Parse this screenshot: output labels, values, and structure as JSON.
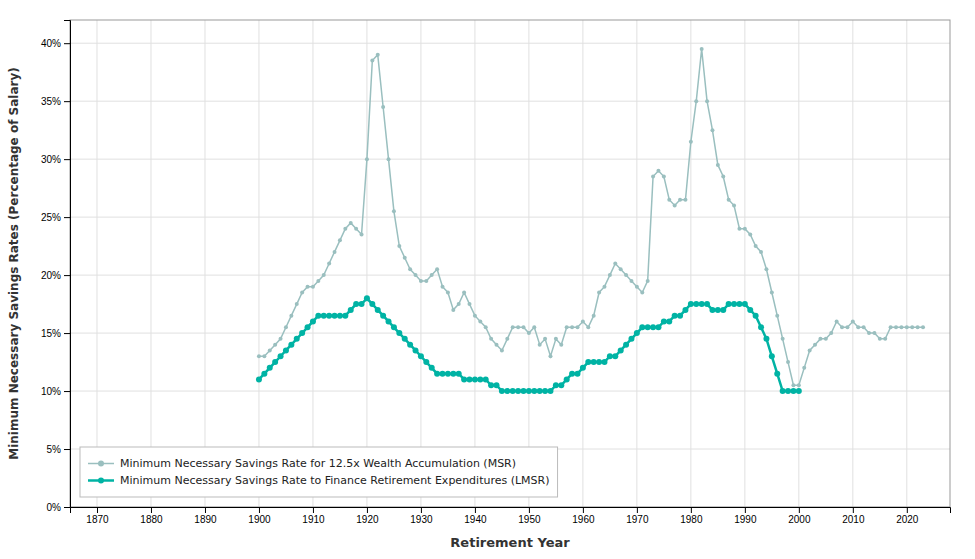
{
  "chart_data": {
    "type": "line",
    "xlabel": "Retirement Year",
    "ylabel": "Minimum Necessary Savings Rates (Percentage of Salary)",
    "xlim": [
      1865,
      2028
    ],
    "xticks": [
      1870,
      1880,
      1890,
      1900,
      1910,
      1920,
      1930,
      1940,
      1950,
      1960,
      1970,
      1980,
      1990,
      2000,
      2010,
      2020
    ],
    "ylim": [
      0.0,
      0.42
    ],
    "yticks": [
      {
        "value": 0.0,
        "label": "0%"
      },
      {
        "value": 0.05,
        "label": "5%"
      },
      {
        "value": 0.1,
        "label": "10%"
      },
      {
        "value": 0.15,
        "label": "15%"
      },
      {
        "value": 0.2,
        "label": "20%"
      },
      {
        "value": 0.25,
        "label": "25%"
      },
      {
        "value": 0.3,
        "label": "30%"
      },
      {
        "value": 0.35,
        "label": "35%"
      },
      {
        "value": 0.4,
        "label": "40%"
      }
    ],
    "grid": true,
    "legend": "lower left",
    "series": [
      {
        "name": "Minimum Necessary Savings Rate for 12.5x Wealth Accumulation (MSR)",
        "color": "#9abfbf",
        "marker": "circle",
        "x": [
          1900,
          1901,
          1902,
          1903,
          1904,
          1905,
          1906,
          1907,
          1908,
          1909,
          1910,
          1911,
          1912,
          1913,
          1914,
          1915,
          1916,
          1917,
          1918,
          1919,
          1920,
          1921,
          1922,
          1923,
          1924,
          1925,
          1926,
          1927,
          1928,
          1929,
          1930,
          1931,
          1932,
          1933,
          1934,
          1935,
          1936,
          1937,
          1938,
          1939,
          1940,
          1941,
          1942,
          1943,
          1944,
          1945,
          1946,
          1947,
          1948,
          1949,
          1950,
          1951,
          1952,
          1953,
          1954,
          1955,
          1956,
          1957,
          1958,
          1959,
          1960,
          1961,
          1962,
          1963,
          1964,
          1965,
          1966,
          1967,
          1968,
          1969,
          1970,
          1971,
          1972,
          1973,
          1974,
          1975,
          1976,
          1977,
          1978,
          1979,
          1980,
          1981,
          1982,
          1983,
          1984,
          1985,
          1986,
          1987,
          1988,
          1989,
          1990,
          1991,
          1992,
          1993,
          1994,
          1995,
          1996,
          1997,
          1998,
          1999,
          2000,
          2001,
          2002,
          2003,
          2004,
          2005,
          2006,
          2007,
          2008,
          2009,
          2010,
          2011,
          2012,
          2013,
          2014,
          2015,
          2016,
          2017,
          2018,
          2019,
          2020,
          2021,
          2022,
          2023
        ],
        "values": [
          0.13,
          0.13,
          0.135,
          0.14,
          0.145,
          0.155,
          0.165,
          0.175,
          0.185,
          0.19,
          0.19,
          0.195,
          0.2,
          0.21,
          0.22,
          0.23,
          0.24,
          0.245,
          0.24,
          0.235,
          0.3,
          0.385,
          0.39,
          0.345,
          0.3,
          0.255,
          0.225,
          0.215,
          0.205,
          0.2,
          0.195,
          0.195,
          0.2,
          0.205,
          0.19,
          0.185,
          0.17,
          0.175,
          0.185,
          0.175,
          0.165,
          0.16,
          0.155,
          0.145,
          0.14,
          0.135,
          0.145,
          0.155,
          0.155,
          0.155,
          0.15,
          0.155,
          0.14,
          0.145,
          0.13,
          0.145,
          0.14,
          0.155,
          0.155,
          0.155,
          0.16,
          0.155,
          0.165,
          0.185,
          0.19,
          0.2,
          0.21,
          0.205,
          0.2,
          0.195,
          0.19,
          0.185,
          0.195,
          0.285,
          0.29,
          0.285,
          0.265,
          0.26,
          0.265,
          0.265,
          0.315,
          0.35,
          0.395,
          0.35,
          0.325,
          0.295,
          0.285,
          0.265,
          0.26,
          0.24,
          0.24,
          0.235,
          0.225,
          0.22,
          0.205,
          0.185,
          0.165,
          0.145,
          0.125,
          0.105,
          0.105,
          0.12,
          0.135,
          0.14,
          0.145,
          0.145,
          0.15,
          0.16,
          0.155,
          0.155,
          0.16,
          0.155,
          0.155,
          0.15,
          0.15,
          0.145,
          0.145,
          0.155,
          0.155,
          0.155,
          0.155,
          0.155,
          0.155,
          0.155
        ]
      },
      {
        "name": "Minimum Necessary Savings Rate to Finance Retirement Expenditures (LMSR)",
        "color": "#00b3a4",
        "marker": "circle",
        "x": [
          1900,
          1901,
          1902,
          1903,
          1904,
          1905,
          1906,
          1907,
          1908,
          1909,
          1910,
          1911,
          1912,
          1913,
          1914,
          1915,
          1916,
          1917,
          1918,
          1919,
          1920,
          1921,
          1922,
          1923,
          1924,
          1925,
          1926,
          1927,
          1928,
          1929,
          1930,
          1931,
          1932,
          1933,
          1934,
          1935,
          1936,
          1937,
          1938,
          1939,
          1940,
          1941,
          1942,
          1943,
          1944,
          1945,
          1946,
          1947,
          1948,
          1949,
          1950,
          1951,
          1952,
          1953,
          1954,
          1955,
          1956,
          1957,
          1958,
          1959,
          1960,
          1961,
          1962,
          1963,
          1964,
          1965,
          1966,
          1967,
          1968,
          1969,
          1970,
          1971,
          1972,
          1973,
          1974,
          1975,
          1976,
          1977,
          1978,
          1979,
          1980,
          1981,
          1982,
          1983,
          1984,
          1985,
          1986,
          1987,
          1988,
          1989,
          1990,
          1991,
          1992,
          1993,
          1994,
          1995,
          1996,
          1997,
          1998,
          1999,
          2000
        ],
        "values": [
          0.11,
          0.115,
          0.12,
          0.125,
          0.13,
          0.135,
          0.14,
          0.145,
          0.15,
          0.155,
          0.16,
          0.165,
          0.165,
          0.165,
          0.165,
          0.165,
          0.165,
          0.17,
          0.175,
          0.175,
          0.18,
          0.175,
          0.17,
          0.165,
          0.16,
          0.155,
          0.15,
          0.145,
          0.14,
          0.135,
          0.13,
          0.125,
          0.12,
          0.115,
          0.115,
          0.115,
          0.115,
          0.115,
          0.11,
          0.11,
          0.11,
          0.11,
          0.11,
          0.105,
          0.105,
          0.1,
          0.1,
          0.1,
          0.1,
          0.1,
          0.1,
          0.1,
          0.1,
          0.1,
          0.1,
          0.105,
          0.105,
          0.11,
          0.115,
          0.115,
          0.12,
          0.125,
          0.125,
          0.125,
          0.125,
          0.13,
          0.13,
          0.135,
          0.14,
          0.145,
          0.15,
          0.155,
          0.155,
          0.155,
          0.155,
          0.16,
          0.16,
          0.165,
          0.165,
          0.17,
          0.175,
          0.175,
          0.175,
          0.175,
          0.17,
          0.17,
          0.17,
          0.175,
          0.175,
          0.175,
          0.175,
          0.17,
          0.165,
          0.155,
          0.145,
          0.13,
          0.115,
          0.1,
          0.1,
          0.1,
          0.1
        ]
      }
    ]
  }
}
